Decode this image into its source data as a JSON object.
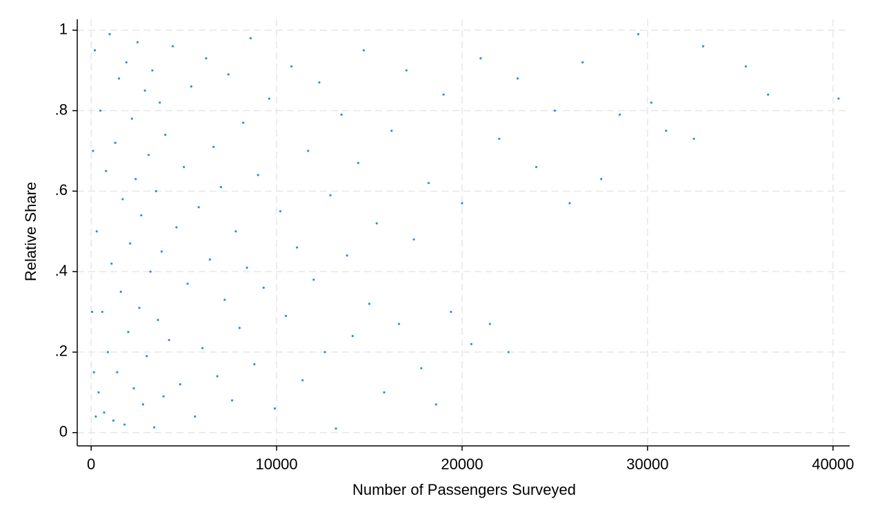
{
  "chart_data": {
    "type": "scatter",
    "xlabel": "Number of Passengers Surveyed",
    "ylabel": "Relative Share",
    "color": "#1e90ff",
    "grid": true,
    "xlim": [
      -750,
      40900
    ],
    "ylim": [
      -0.033,
      1.027
    ],
    "xticks": [
      0,
      10000,
      20000,
      30000,
      40000
    ],
    "yticks": [
      0,
      {
        "value": 0.2,
        "label": ".2"
      },
      {
        "value": 0.4,
        "label": ".4"
      },
      {
        "value": 0.6,
        "label": ".6"
      },
      {
        "value": 0.8,
        "label": ".8"
      },
      1
    ],
    "x": [
      50,
      100,
      150,
      250,
      200,
      300,
      400,
      500,
      600,
      700,
      800,
      900,
      1000,
      1100,
      1200,
      1300,
      1400,
      1500,
      1600,
      1700,
      1800,
      1900,
      2000,
      2100,
      2200,
      2300,
      2400,
      2500,
      2600,
      2700,
      2800,
      2900,
      3000,
      3100,
      3200,
      3300,
      3400,
      3500,
      3600,
      3700,
      3800,
      3900,
      4000,
      4200,
      4400,
      4600,
      4800,
      5000,
      5200,
      5400,
      5600,
      5800,
      6000,
      6200,
      6400,
      6600,
      6800,
      7000,
      7200,
      7400,
      7600,
      7800,
      8000,
      8200,
      8400,
      8600,
      8800,
      9000,
      9300,
      9600,
      9900,
      10200,
      10500,
      10800,
      11100,
      11400,
      11700,
      12000,
      12300,
      12600,
      12900,
      13200,
      13500,
      13800,
      14100,
      14400,
      14700,
      15000,
      15400,
      15800,
      16200,
      16600,
      17000,
      17400,
      17800,
      18200,
      18600,
      19000,
      19400,
      20000,
      20500,
      21000,
      21500,
      22000,
      22500,
      23000,
      24000,
      25000,
      25800,
      26500,
      27500,
      28500,
      29500,
      30200,
      31000,
      32500,
      33000,
      35300,
      36500,
      40300
    ],
    "values": [
      0.3,
      0.7,
      0.15,
      0.04,
      0.95,
      0.5,
      0.1,
      0.8,
      0.3,
      0.05,
      0.65,
      0.2,
      0.99,
      0.42,
      0.03,
      0.72,
      0.15,
      0.88,
      0.35,
      0.58,
      0.02,
      0.92,
      0.25,
      0.47,
      0.78,
      0.11,
      0.63,
      0.97,
      0.31,
      0.54,
      0.07,
      0.85,
      0.19,
      0.69,
      0.4,
      0.9,
      0.013,
      0.6,
      0.28,
      0.82,
      0.45,
      0.09,
      0.74,
      0.23,
      0.96,
      0.51,
      0.12,
      0.66,
      0.37,
      0.86,
      0.04,
      0.56,
      0.21,
      0.93,
      0.43,
      0.71,
      0.14,
      0.61,
      0.33,
      0.89,
      0.08,
      0.5,
      0.26,
      0.77,
      0.41,
      0.98,
      0.17,
      0.64,
      0.36,
      0.83,
      0.06,
      0.55,
      0.29,
      0.91,
      0.46,
      0.13,
      0.7,
      0.38,
      0.87,
      0.2,
      0.59,
      0.01,
      0.79,
      0.44,
      0.24,
      0.67,
      0.95,
      0.32,
      0.52,
      0.1,
      0.75,
      0.27,
      0.9,
      0.48,
      0.16,
      0.62,
      0.07,
      0.84,
      0.3,
      0.57,
      0.22,
      0.93,
      0.27,
      0.73,
      0.2,
      0.88,
      0.66,
      0.8,
      0.57,
      0.92,
      0.63,
      0.79,
      0.99,
      0.82,
      0.75,
      0.73,
      0.96,
      0.91,
      0.84,
      0.83
    ]
  }
}
